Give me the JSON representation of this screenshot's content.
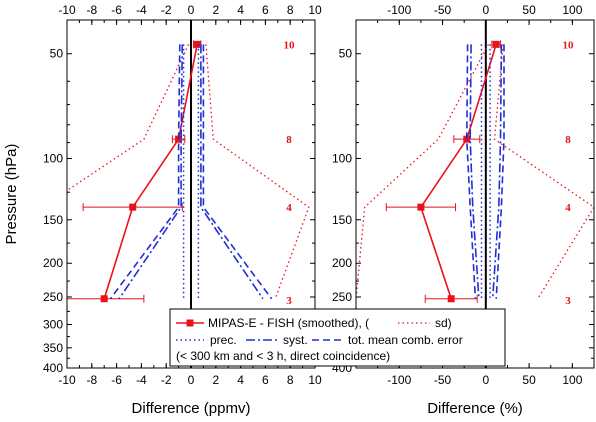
{
  "chart_data": [
    {
      "type": "line",
      "xlabel": "Difference (ppmv)",
      "ylabel": "Pressure (hPa)",
      "xlim": [
        -10,
        10
      ],
      "ylim": [
        400,
        40
      ],
      "yscale": "log",
      "xticks": [
        -10,
        -8,
        -6,
        -4,
        -2,
        0,
        2,
        4,
        6,
        8,
        10
      ],
      "yticks": [
        50,
        100,
        150,
        200,
        250,
        300,
        350,
        400
      ],
      "coincidence_counts": [
        {
          "p": 47,
          "n": "10"
        },
        {
          "p": 88,
          "n": "8"
        },
        {
          "p": 138,
          "n": "4"
        },
        {
          "p": 255,
          "n": "3"
        }
      ],
      "series": [
        {
          "name": "MIPAS-E - FISH (smoothed)",
          "style": "mean",
          "x": [
            0.5,
            -1.0,
            -4.7,
            -7.0
          ],
          "y": [
            47,
            88,
            138,
            253
          ],
          "err": [
            0.3,
            0.5,
            4.0,
            3.2
          ]
        },
        {
          "name": "sd",
          "style": "sd",
          "x": [
            1.2,
            1.8,
            9.5,
            6.8
          ],
          "y": [
            47,
            88,
            138,
            253
          ]
        },
        {
          "name": "sd",
          "style": "sd",
          "x": [
            -0.2,
            -3.8,
            -12.0,
            -11.0
          ],
          "y": [
            47,
            88,
            138,
            253
          ]
        },
        {
          "name": "prec.",
          "style": "prec",
          "x": [
            -0.6,
            -0.6,
            -0.6,
            -0.6
          ],
          "y": [
            47,
            88,
            138,
            253
          ]
        },
        {
          "name": "prec.",
          "style": "prec",
          "x": [
            0.6,
            0.6,
            0.6,
            0.6
          ],
          "y": [
            47,
            88,
            138,
            253
          ]
        },
        {
          "name": "syst.",
          "style": "syst",
          "x": [
            -0.7,
            -0.8,
            -0.8,
            -5.8
          ],
          "y": [
            47,
            88,
            138,
            253
          ]
        },
        {
          "name": "syst.",
          "style": "syst",
          "x": [
            0.8,
            0.8,
            0.8,
            5.8
          ],
          "y": [
            47,
            88,
            138,
            253
          ]
        },
        {
          "name": "tot. mean comb. error",
          "style": "tot",
          "x": [
            -0.9,
            -1.0,
            -1.0,
            -6.5
          ],
          "y": [
            47,
            88,
            138,
            253
          ]
        },
        {
          "name": "tot. mean comb. error",
          "style": "tot",
          "x": [
            1.0,
            1.0,
            1.0,
            6.5
          ],
          "y": [
            47,
            88,
            138,
            253
          ]
        }
      ]
    },
    {
      "type": "line",
      "xlabel": "Difference (%)",
      "ylabel": "",
      "xlim": [
        -150,
        125
      ],
      "ylim": [
        400,
        40
      ],
      "yscale": "log",
      "xticks": [
        -100,
        -50,
        0,
        50,
        100
      ],
      "yticks": [
        50,
        100,
        150,
        200,
        250,
        300,
        350,
        400
      ],
      "coincidence_counts": [
        {
          "p": 47,
          "n": "10"
        },
        {
          "p": 88,
          "n": "8"
        },
        {
          "p": 138,
          "n": "4"
        },
        {
          "p": 255,
          "n": "3"
        }
      ],
      "series": [
        {
          "name": "MIPAS-E - FISH (smoothed)",
          "style": "mean",
          "x": [
            12,
            -22,
            -75,
            -40
          ],
          "y": [
            47,
            88,
            138,
            253
          ],
          "err": [
            5,
            15,
            40,
            30
          ]
        },
        {
          "name": "sd",
          "style": "sd",
          "x": [
            20,
            10,
            125,
            60
          ],
          "y": [
            47,
            88,
            138,
            253
          ]
        },
        {
          "name": "sd",
          "style": "sd",
          "x": [
            3,
            -55,
            -140,
            -150
          ],
          "y": [
            47,
            88,
            138,
            253
          ]
        },
        {
          "name": "prec.",
          "style": "prec",
          "x": [
            -5,
            -5,
            -5,
            -5
          ],
          "y": [
            47,
            88,
            138,
            253
          ]
        },
        {
          "name": "prec.",
          "style": "prec",
          "x": [
            5,
            5,
            5,
            5
          ],
          "y": [
            47,
            88,
            138,
            253
          ]
        },
        {
          "name": "syst.",
          "style": "syst",
          "x": [
            -17,
            -18,
            -15,
            -8
          ],
          "y": [
            47,
            88,
            138,
            253
          ]
        },
        {
          "name": "syst.",
          "style": "syst",
          "x": [
            18,
            17,
            15,
            8
          ],
          "y": [
            47,
            88,
            138,
            253
          ]
        },
        {
          "name": "tot. mean comb. error",
          "style": "tot",
          "x": [
            -21,
            -22,
            -18,
            -12
          ],
          "y": [
            47,
            88,
            138,
            253
          ]
        },
        {
          "name": "tot. mean comb. error",
          "style": "tot",
          "x": [
            21,
            21,
            18,
            12
          ],
          "y": [
            47,
            88,
            138,
            253
          ]
        }
      ]
    }
  ],
  "legend": {
    "line1_a": "MIPAS-E - FISH (smoothed), (",
    "line1_b": "sd)",
    "line2_a": "prec.",
    "line2_b": "syst.",
    "line2_c": "tot. mean comb. error",
    "line3": "(< 300 km and < 3 h, direct coincidence)"
  },
  "colors": {
    "red": "#e8121a",
    "blue": "#1f2fd6",
    "black": "#000000"
  }
}
